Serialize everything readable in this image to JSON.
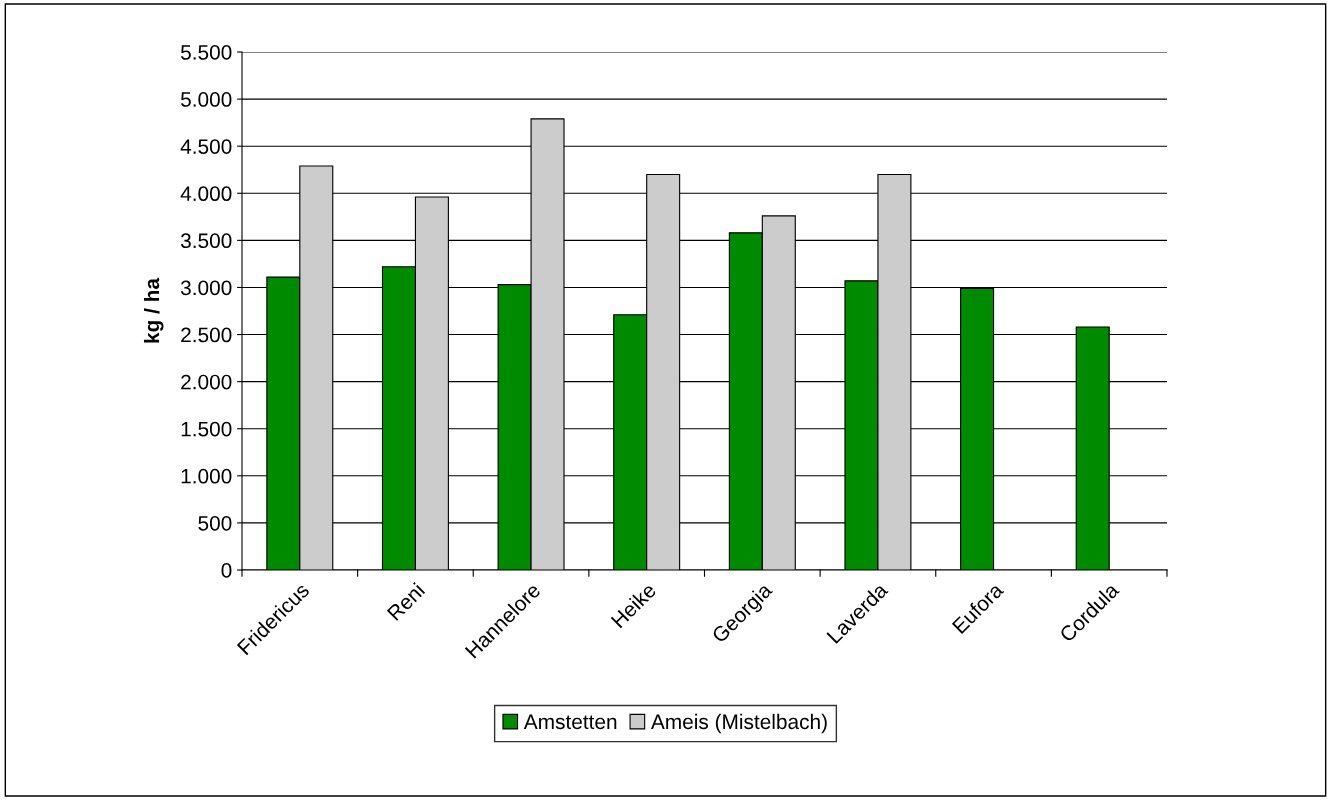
{
  "chart_data": {
    "type": "bar",
    "ylabel": "kg / ha",
    "categories": [
      "Fridericus",
      "Reni",
      "Hannelore",
      "Heike",
      "Georgia",
      "Laverda",
      "Eufora",
      "Cordula"
    ],
    "series": [
      {
        "name": "Amstetten",
        "color": "#008a00",
        "values": [
          3110,
          3220,
          3030,
          2710,
          3580,
          3070,
          2990,
          2580
        ]
      },
      {
        "name": "Ameis (Mistelbach)",
        "color": "#cccccc",
        "values": [
          4290,
          3960,
          4790,
          4200,
          3760,
          4200,
          null,
          null
        ]
      }
    ],
    "ylim": [
      0,
      5500
    ],
    "yticks": [
      0,
      {
        "value": 500,
        "label": "500"
      },
      {
        "value": 1000,
        "label": "1.000"
      },
      {
        "value": 1500,
        "label": "1.500"
      },
      {
        "value": 2000,
        "label": "2.000"
      },
      {
        "value": 2500,
        "label": "2.500"
      },
      {
        "value": 3000,
        "label": "3.000"
      },
      {
        "value": 3500,
        "label": "3.500"
      },
      {
        "value": 4000,
        "label": "4.000"
      },
      {
        "value": 4500,
        "label": "4.500"
      },
      {
        "value": 5000,
        "label": "5.000"
      },
      {
        "value": 5500,
        "label": "5.500"
      }
    ],
    "grid": "y",
    "legend": "bottom"
  }
}
